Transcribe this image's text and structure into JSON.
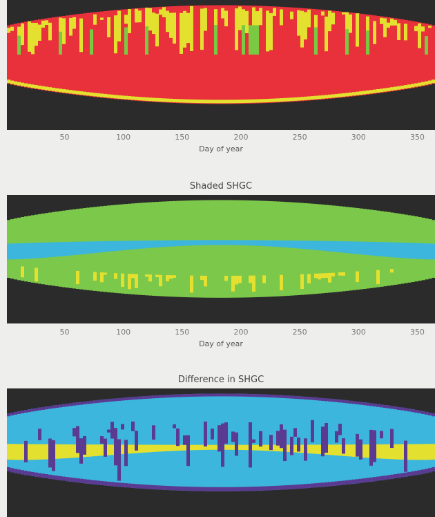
{
  "chart_data": [
    {
      "type": "heatmap",
      "title": "",
      "xlabel": "Day of year",
      "xticks": [
        50,
        100,
        150,
        200,
        250,
        300,
        350
      ],
      "xlim": [
        1,
        365
      ],
      "colors": {
        "night": "#2b2b2b",
        "dominant": "#e8313b",
        "secondary": "#e3e030",
        "accent": "#7ac943"
      }
    },
    {
      "type": "heatmap",
      "title": "Shaded SHGC",
      "xlabel": "Day of year",
      "xticks": [
        50,
        100,
        150,
        200,
        250,
        300,
        350
      ],
      "xlim": [
        1,
        365
      ],
      "colors": {
        "night": "#2b2b2b",
        "dominant": "#7cc84a",
        "secondary": "#3cb6dc",
        "accent": "#e3e030"
      }
    },
    {
      "type": "heatmap",
      "title": "Difference in SHGC",
      "xlabel": "",
      "xticks": [],
      "xlim": [
        1,
        365
      ],
      "colors": {
        "night": "#2b2b2b",
        "dominant": "#3cb6dc",
        "secondary": "#5b3b92",
        "accent": "#e3e030"
      }
    }
  ]
}
